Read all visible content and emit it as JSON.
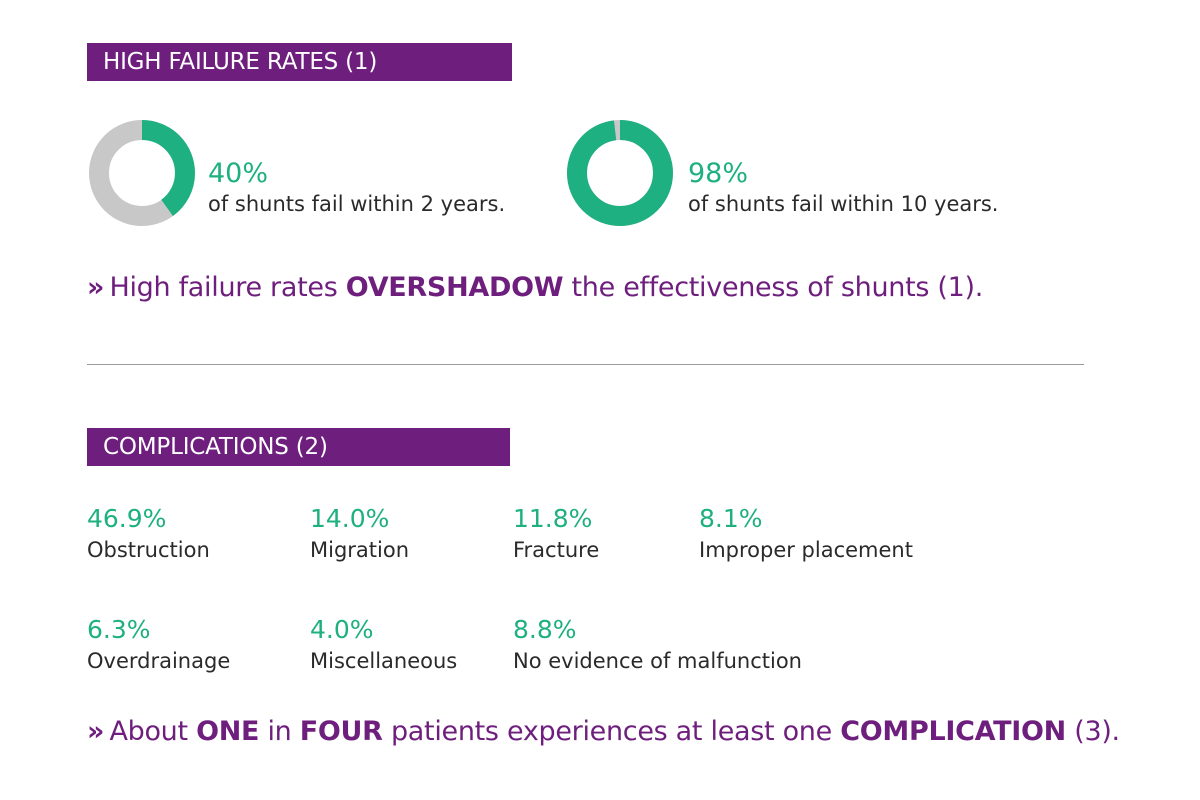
{
  "section1": {
    "title": "HIGH FAILURE RATES (1)",
    "stats": [
      {
        "percent": "40%",
        "fraction": 0.4,
        "caption": "of shunts fail within 2 years."
      },
      {
        "percent": "98%",
        "fraction": 0.98,
        "caption": "of shunts fail within 10 years."
      }
    ],
    "callout": {
      "chevron": "»",
      "before": "High failure rates ",
      "emphasis": "OVERSHADOW",
      "after": " the effectiveness of shunts (1)."
    }
  },
  "section2": {
    "title": "COMPLICATIONS (2)",
    "items": [
      {
        "percent": "46.9%",
        "label": "Obstruction"
      },
      {
        "percent": "14.0%",
        "label": "Migration"
      },
      {
        "percent": "11.8%",
        "label": "Fracture"
      },
      {
        "percent": "8.1%",
        "label": "Improper placement"
      },
      {
        "percent": "6.3%",
        "label": "Overdrainage"
      },
      {
        "percent": "4.0%",
        "label": "Miscellaneous"
      },
      {
        "percent": "8.8%",
        "label": "No evidence of malfunction"
      }
    ],
    "callout": {
      "chevron": "»",
      "t1": "About ",
      "e1": "ONE",
      "t2": " in ",
      "e2": "FOUR",
      "t3": " patients experiences at least one ",
      "e3": "COMPLICATION",
      "t4": " (3)."
    }
  },
  "colors": {
    "purple": "#6e1f7d",
    "green": "#1fb081",
    "gray": "#c8c8c8",
    "text": "#2a2a2a"
  }
}
